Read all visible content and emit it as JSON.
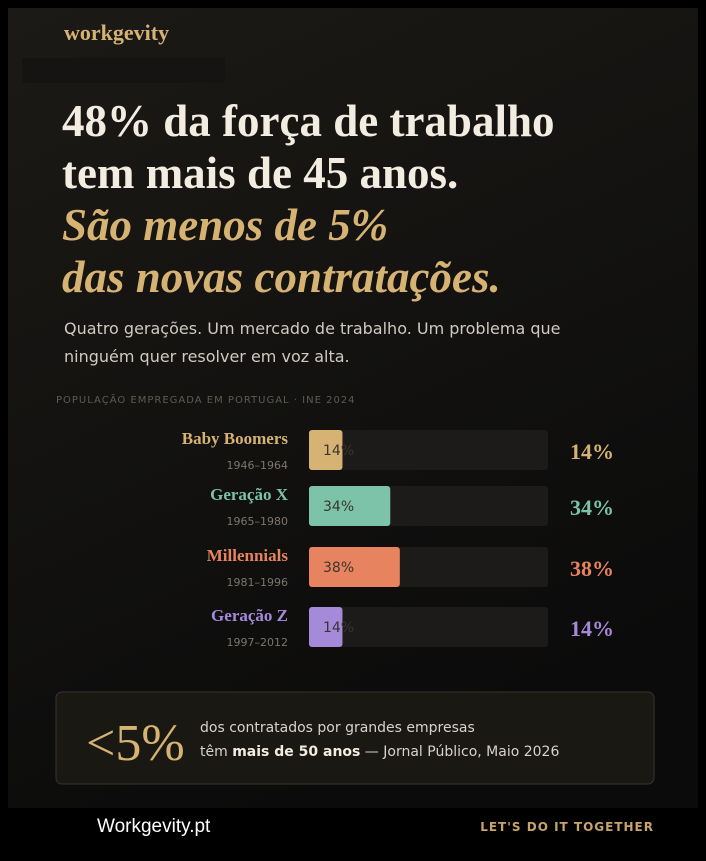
{
  "brand": "workgevity",
  "headline": [
    "48% da força de trabalho",
    "tem mais de 45 anos.",
    "São menos de 5%",
    "das novas contratações."
  ],
  "intro": [
    "Quatro gerações. Um mercado de trabalho. Um problema que",
    "ninguém quer resolver em voz alta."
  ],
  "chart_data": {
    "type": "bar",
    "orientation": "horizontal",
    "subtitle": "POPULAÇÃO EMPREGADA EM PORTUGAL · INE 2024",
    "categories": [
      "Baby Boomers",
      "Geração X",
      "Millennials",
      "Geração Z"
    ],
    "periods": [
      "1946–1964",
      "1965–1980",
      "1981–1996",
      "1997–2012"
    ],
    "values": [
      14,
      34,
      38,
      14
    ],
    "value_labels": [
      "14%",
      "34%",
      "38%",
      "14%"
    ],
    "colors": [
      "#d6b373",
      "#7cc3aa",
      "#e8835f",
      "#a58ad9"
    ],
    "xlim": [
      0,
      100
    ]
  },
  "callout": {
    "figure": "<5%",
    "line1": "dos contratados por grandes empresas",
    "line2_start": "têm ",
    "line2_bold": "mais de 50 anos",
    "line2_end": " — Jornal Público, Maio 2026"
  },
  "footer": {
    "site": "Workgevity.pt",
    "tagline": "LET'S DO IT TOGETHER"
  }
}
